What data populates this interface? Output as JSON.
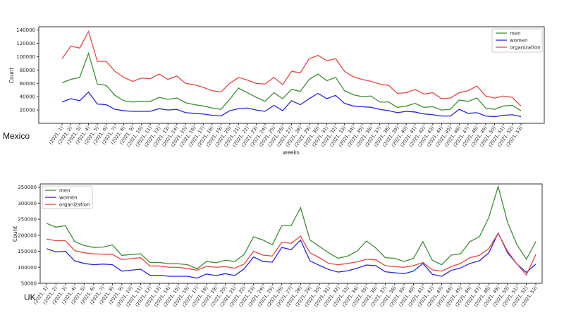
{
  "colors": {
    "men": "#3a8f2e",
    "women": "#2525e0",
    "organization": "#e8453c"
  },
  "chart_data": [
    {
      "type": "line",
      "caption": "Mexico",
      "xlabel": "weeks",
      "ylabel": "Count",
      "ylim": [
        0,
        145000
      ],
      "yticks": [
        20000,
        40000,
        60000,
        80000,
        100000,
        120000,
        140000
      ],
      "ytick_labels": [
        "20000",
        "40000",
        "60000",
        "80000",
        "100000",
        "120000",
        "140000"
      ],
      "legend_position": "top-right",
      "categories": [
        "(2021, 1)",
        "(2021, 2)",
        "(2021, 3)",
        "(2021, 4)",
        "(2021, 5)",
        "(2021, 6)",
        "(2021, 7)",
        "(2021, 8)",
        "(2021, 9)",
        "(2021, 10)",
        "(2021, 11)",
        "(2021, 12)",
        "(2021, 13)",
        "(2021, 14)",
        "(2021, 15)",
        "(2021, 16)",
        "(2021, 17)",
        "(2021, 18)",
        "(2021, 19)",
        "(2021, 20)",
        "(2021, 21)",
        "(2021, 22)",
        "(2021, 23)",
        "(2021, 24)",
        "(2021, 25)",
        "(2021, 26)",
        "(2021, 27)",
        "(2021, 28)",
        "(2021, 29)",
        "(2021, 30)",
        "(2021, 31)",
        "(2021, 32)",
        "(2021, 33)",
        "(2021, 34)",
        "(2021, 35)",
        "(2021, 36)",
        "(2021, 37)",
        "(2021, 38)",
        "(2021, 39)",
        "(2021, 40)",
        "(2021, 41)",
        "(2021, 42)",
        "(2021, 43)",
        "(2021, 44)",
        "(2021, 45)",
        "(2021, 46)",
        "(2021, 47)",
        "(2021, 48)",
        "(2021, 49)",
        "(2021, 50)",
        "(2021, 51)",
        "(2021, 52)",
        "(2021, 53)"
      ],
      "series": [
        {
          "name": "men",
          "color_key": "men",
          "values": [
            61000,
            66000,
            69000,
            105000,
            59000,
            57000,
            42000,
            34000,
            32000,
            33000,
            33000,
            39000,
            36000,
            38000,
            31000,
            28000,
            26000,
            23000,
            21000,
            36000,
            53000,
            46000,
            39000,
            33000,
            46000,
            37000,
            51000,
            48000,
            66000,
            74000,
            64000,
            69000,
            49000,
            43000,
            40000,
            41000,
            32000,
            32000,
            24000,
            26000,
            30000,
            24000,
            25000,
            20000,
            21000,
            35000,
            33000,
            38000,
            23000,
            21000,
            26000,
            27000,
            19000
          ]
        },
        {
          "name": "women",
          "color_key": "women",
          "values": [
            32000,
            37000,
            34000,
            47000,
            29000,
            28000,
            21000,
            19000,
            18000,
            18000,
            18000,
            22000,
            20000,
            21000,
            16000,
            15000,
            14000,
            12000,
            11000,
            19000,
            22000,
            23000,
            20000,
            18000,
            27000,
            19000,
            34000,
            28000,
            37000,
            45000,
            37000,
            42000,
            30000,
            26000,
            25000,
            24000,
            21000,
            19000,
            16000,
            18000,
            17000,
            14000,
            13000,
            11000,
            11000,
            21000,
            15000,
            16000,
            11000,
            10000,
            12000,
            13000,
            10000
          ]
        },
        {
          "name": "organization",
          "color_key": "organization",
          "values": [
            97000,
            116000,
            113000,
            138000,
            93000,
            93000,
            78000,
            69000,
            63000,
            68000,
            67000,
            74000,
            66000,
            71000,
            60000,
            58000,
            54000,
            49000,
            47000,
            60000,
            69000,
            65000,
            60000,
            59000,
            69000,
            58000,
            78000,
            76000,
            97000,
            102000,
            94000,
            97000,
            78000,
            70000,
            66000,
            63000,
            59000,
            57000,
            45000,
            46000,
            51000,
            44000,
            46000,
            37000,
            38000,
            46000,
            49000,
            56000,
            41000,
            38000,
            41000,
            39000,
            26000
          ]
        }
      ]
    },
    {
      "type": "line",
      "caption": "UK",
      "xlabel": "",
      "ylabel": "Count",
      "ylim": [
        50000,
        360000
      ],
      "yticks": [
        50000,
        100000,
        150000,
        200000,
        250000,
        300000,
        350000
      ],
      "ytick_labels": [
        "50000",
        "100000",
        "150000",
        "200000",
        "250000",
        "300000",
        "350000"
      ],
      "legend_position": "top-left",
      "categories": [
        "(2021, 1)",
        "(2021, 2)",
        "(2021, 3)",
        "(2021, 4)",
        "(2021, 5)",
        "(2021, 6)",
        "(2021, 7)",
        "(2021, 8)",
        "(2021, 9)",
        "(2021, 10)",
        "(2021, 11)",
        "(2021, 12)",
        "(2021, 13)",
        "(2021, 14)",
        "(2021, 15)",
        "(2021, 16)",
        "(2021, 17)",
        "(2021, 18)",
        "(2021, 19)",
        "(2021, 20)",
        "(2021, 21)",
        "(2021, 22)",
        "(2021, 23)",
        "(2021, 24)",
        "(2021, 25)",
        "(2021, 26)",
        "(2021, 27)",
        "(2021, 28)",
        "(2021, 29)",
        "(2021, 30)",
        "(2021, 31)",
        "(2021, 32)",
        "(2021, 33)",
        "(2021, 34)",
        "(2021, 35)",
        "(2021, 36)",
        "(2021, 37)",
        "(2021, 38)",
        "(2021, 39)",
        "(2021, 40)",
        "(2021, 41)",
        "(2021, 42)",
        "(2021, 43)",
        "(2021, 44)",
        "(2021, 45)",
        "(2021, 46)",
        "(2021, 47)",
        "(2021, 48)",
        "(2021, 49)",
        "(2021, 50)",
        "(2021, 51)",
        "(2021, 52)",
        "(2021, 53)"
      ],
      "series": [
        {
          "name": "men",
          "color_key": "men",
          "values": [
            237000,
            225000,
            230000,
            180000,
            168000,
            162000,
            163000,
            170000,
            137000,
            140000,
            142000,
            115000,
            115000,
            111000,
            111000,
            108000,
            95000,
            118000,
            114000,
            122000,
            118000,
            140000,
            195000,
            185000,
            170000,
            230000,
            230000,
            286000,
            185000,
            165000,
            145000,
            128000,
            135000,
            150000,
            182000,
            160000,
            130000,
            128000,
            118000,
            128000,
            180000,
            122000,
            108000,
            138000,
            142000,
            180000,
            195000,
            255000,
            352000,
            240000,
            170000,
            125000,
            180000
          ]
        },
        {
          "name": "women",
          "color_key": "women",
          "values": [
            158000,
            148000,
            150000,
            120000,
            112000,
            108000,
            110000,
            108000,
            88000,
            91000,
            94000,
            75000,
            75000,
            72000,
            72000,
            72000,
            66000,
            79000,
            74000,
            80000,
            74000,
            95000,
            132000,
            118000,
            116000,
            162000,
            155000,
            185000,
            120000,
            106000,
            93000,
            85000,
            89000,
            97000,
            107000,
            105000,
            86000,
            83000,
            80000,
            88000,
            112000,
            78000,
            72000,
            90000,
            98000,
            112000,
            120000,
            145000,
            207000,
            145000,
            110000,
            84000,
            110000
          ]
        },
        {
          "name": "organization",
          "color_key": "organization",
          "values": [
            188000,
            183000,
            183000,
            152000,
            145000,
            142000,
            141000,
            140000,
            124000,
            127000,
            130000,
            104000,
            104000,
            100000,
            100000,
            96000,
            91000,
            103000,
            100000,
            102000,
            97000,
            110000,
            150000,
            138000,
            135000,
            178000,
            175000,
            197000,
            145000,
            130000,
            112000,
            108000,
            112000,
            117000,
            125000,
            123000,
            105000,
            102000,
            100000,
            105000,
            115000,
            92000,
            88000,
            102000,
            112000,
            130000,
            137000,
            158000,
            206000,
            150000,
            110000,
            76000,
            140000
          ]
        }
      ]
    }
  ]
}
